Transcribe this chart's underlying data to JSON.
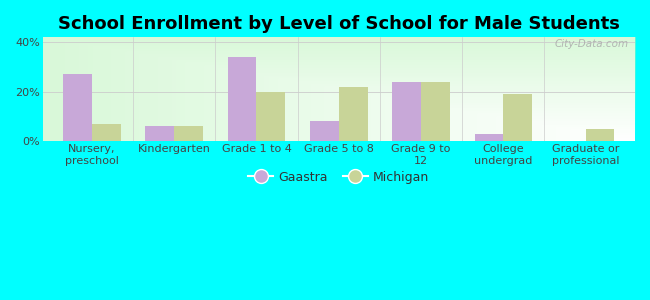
{
  "title": "School Enrollment by Level of School for Male Students",
  "categories": [
    "Nursery,\npreschool",
    "Kindergarten",
    "Grade 1 to 4",
    "Grade 5 to 8",
    "Grade 9 to\n12",
    "College\nundergrad",
    "Graduate or\nprofessional"
  ],
  "gaastra": [
    27.0,
    6.0,
    34.0,
    8.0,
    24.0,
    3.0,
    0.0
  ],
  "michigan": [
    7.0,
    6.0,
    20.0,
    22.0,
    24.0,
    19.0,
    5.0
  ],
  "gaastra_color": "#c8a8d8",
  "michigan_color": "#c8d498",
  "background_outer": "#00ffff",
  "ylim": [
    0,
    42
  ],
  "yticks": [
    0,
    20,
    40
  ],
  "ytick_labels": [
    "0%",
    "20%",
    "40%"
  ],
  "bar_width": 0.35,
  "legend_gaastra": "Gaastra",
  "legend_michigan": "Michigan",
  "watermark": "City-Data.com",
  "title_fontsize": 13,
  "tick_fontsize": 8
}
